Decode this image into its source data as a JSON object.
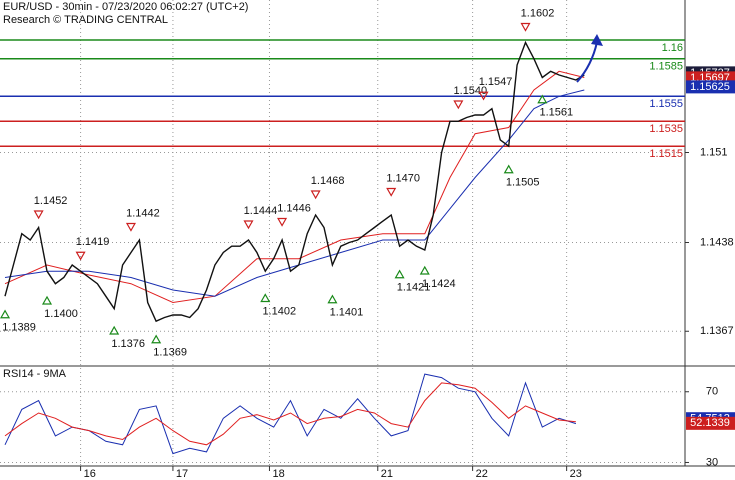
{
  "chart_data": {
    "type": "line",
    "title": "EUR/USD - 30min - 07/23/2020 06:02:27 (UTC+2)",
    "subtitle": "Research © TRADING CENTRAL",
    "xlim": [
      -0.6,
      81
    ],
    "xticks": [
      {
        "value": 9,
        "label": "16"
      },
      {
        "value": 20,
        "label": "17"
      },
      {
        "value": 31.5,
        "label": "18"
      },
      {
        "value": 44.4,
        "label": "21"
      },
      {
        "value": 55.7,
        "label": "22"
      },
      {
        "value": 66.9,
        "label": "23"
      }
    ],
    "ylim": [
      1.134,
      1.1632
    ],
    "yticks": [
      1.1367,
      1.1438,
      1.151
    ],
    "grid": true,
    "x": [
      0,
      1,
      2,
      3,
      4,
      5,
      6,
      7,
      8,
      9,
      10,
      11,
      12,
      13,
      14,
      15,
      16,
      17,
      18,
      19,
      20,
      21,
      22,
      23,
      24,
      25,
      26,
      27,
      28,
      29,
      30,
      31,
      32,
      33,
      34,
      35,
      36,
      37,
      38,
      39,
      40,
      41,
      42,
      43,
      44,
      45,
      46,
      47,
      48,
      49,
      50,
      51,
      52,
      53,
      54,
      55,
      56,
      57,
      58,
      59,
      60,
      61,
      62,
      63,
      64,
      65,
      66,
      67,
      68,
      69
    ],
    "series": [
      {
        "name": "EUR/USD",
        "color": "#111111",
        "values": [
          1.1395,
          1.142,
          1.1445,
          1.144,
          1.145,
          1.1415,
          1.1405,
          1.141,
          1.142,
          1.1415,
          1.141,
          1.1405,
          1.1395,
          1.1385,
          1.142,
          1.143,
          1.144,
          1.139,
          1.1375,
          1.1378,
          1.138,
          1.138,
          1.1378,
          1.1385,
          1.14,
          1.142,
          1.143,
          1.1435,
          1.1435,
          1.144,
          1.143,
          1.1415,
          1.1425,
          1.144,
          1.1415,
          1.142,
          1.1445,
          1.146,
          1.145,
          1.142,
          1.1435,
          1.1438,
          1.144,
          1.1445,
          1.145,
          1.1455,
          1.146,
          1.1435,
          1.144,
          1.1435,
          1.1432,
          1.146,
          1.151,
          1.1535,
          1.1535,
          1.1538,
          1.154,
          1.154,
          1.1545,
          1.152,
          1.1515,
          1.158,
          1.1598,
          1.1585,
          1.157,
          1.1575,
          1.1572,
          1.157,
          1.1568,
          1.1572
        ]
      }
    ],
    "averages": [
      {
        "color": "#e02020",
        "x": [
          0,
          5,
          10,
          15,
          20,
          25,
          30,
          35,
          40,
          45,
          50,
          53,
          56,
          60,
          63,
          66,
          69
        ],
        "values": [
          1.1405,
          1.142,
          1.1412,
          1.1405,
          1.139,
          1.1395,
          1.1425,
          1.1425,
          1.144,
          1.1445,
          1.1445,
          1.149,
          1.1525,
          1.153,
          1.156,
          1.1575,
          1.157
        ]
      },
      {
        "color": "#1a2fb0",
        "x": [
          0,
          5,
          10,
          15,
          20,
          25,
          30,
          35,
          40,
          45,
          50,
          53,
          56,
          60,
          63,
          66,
          69
        ],
        "values": [
          1.141,
          1.1415,
          1.1415,
          1.141,
          1.14,
          1.1395,
          1.141,
          1.142,
          1.143,
          1.144,
          1.144,
          1.1465,
          1.149,
          1.152,
          1.1545,
          1.1555,
          1.156
        ]
      }
    ],
    "levels": [
      {
        "value": 1.16,
        "color": "#1a8a1a"
      },
      {
        "value": 1.1585,
        "color": "#1a8a1a"
      },
      {
        "value": 1.1555,
        "color": "#1a2fb0"
      },
      {
        "value": 1.1535,
        "color": "#cc1f1f"
      },
      {
        "value": 1.1515,
        "color": "#cc1f1f"
      }
    ],
    "price_tags": [
      {
        "value": 1.15737,
        "color": "#1c1c3a"
      },
      {
        "value": 1.15697,
        "color": "#cc1f1f"
      },
      {
        "value": 1.15625,
        "color": "#1a2fb0"
      }
    ],
    "pivot_highs": [
      {
        "x": 4,
        "value": 1.1452,
        "label": "1.1452"
      },
      {
        "x": 9,
        "value": 1.1419,
        "label": "1.1419"
      },
      {
        "x": 15,
        "value": 1.1442,
        "label": "1.1442"
      },
      {
        "x": 29,
        "value": 1.1444,
        "label": "1.1444"
      },
      {
        "x": 33,
        "value": 1.1446,
        "label": "1.1446"
      },
      {
        "x": 37,
        "value": 1.1468,
        "label": "1.1468"
      },
      {
        "x": 46,
        "value": 1.147,
        "label": "1.1470"
      },
      {
        "x": 54,
        "value": 1.154,
        "label": "1.1540"
      },
      {
        "x": 57,
        "value": 1.1547,
        "label": "1.1547"
      },
      {
        "x": 62,
        "value": 1.1602,
        "label": "1.1602"
      }
    ],
    "pivot_lows": [
      {
        "x": 0,
        "value": 1.1389,
        "label": "1.1389"
      },
      {
        "x": 5,
        "value": 1.14,
        "label": "1.1400"
      },
      {
        "x": 13,
        "value": 1.1376,
        "label": "1.1376"
      },
      {
        "x": 18,
        "value": 1.1369,
        "label": "1.1369"
      },
      {
        "x": 31,
        "value": 1.1402,
        "label": "1.1402"
      },
      {
        "x": 39,
        "value": 1.1401,
        "label": "1.1401"
      },
      {
        "x": 47,
        "value": 1.1421,
        "label": "1.1421"
      },
      {
        "x": 50,
        "value": 1.1424,
        "label": "1.1424"
      },
      {
        "x": 60,
        "value": 1.1505,
        "label": "1.1505"
      },
      {
        "x": 64,
        "value": 1.1561,
        "label": "1.1561"
      }
    ],
    "rsi": {
      "title": "RSI14 - 9MA",
      "ylim": [
        28,
        84
      ],
      "yticks": [
        30,
        70
      ],
      "x": [
        0,
        2,
        4,
        6,
        8,
        10,
        12,
        14,
        16,
        18,
        20,
        22,
        24,
        26,
        28,
        30,
        32,
        34,
        36,
        38,
        40,
        42,
        44,
        46,
        48,
        50,
        52,
        54,
        56,
        58,
        60,
        62,
        64,
        66,
        68
      ],
      "series": [
        {
          "color": "#1a2fb0",
          "values": [
            40,
            60,
            65,
            45,
            50,
            48,
            42,
            40,
            60,
            62,
            35,
            38,
            36,
            55,
            62,
            55,
            50,
            65,
            45,
            60,
            55,
            66,
            55,
            45,
            48,
            80,
            78,
            72,
            70,
            55,
            45,
            75,
            50,
            55,
            52
          ]
        },
        {
          "color": "#e02020",
          "values": [
            45,
            52,
            58,
            55,
            50,
            48,
            45,
            43,
            50,
            55,
            48,
            42,
            40,
            46,
            55,
            57,
            54,
            58,
            52,
            55,
            56,
            60,
            58,
            52,
            50,
            65,
            75,
            74,
            72,
            64,
            55,
            62,
            58,
            54,
            53
          ]
        }
      ],
      "tags": [
        {
          "value": 54.7512,
          "color": "#1a2fb0"
        },
        {
          "value": 52.1339,
          "color": "#cc1f1f"
        }
      ]
    }
  }
}
